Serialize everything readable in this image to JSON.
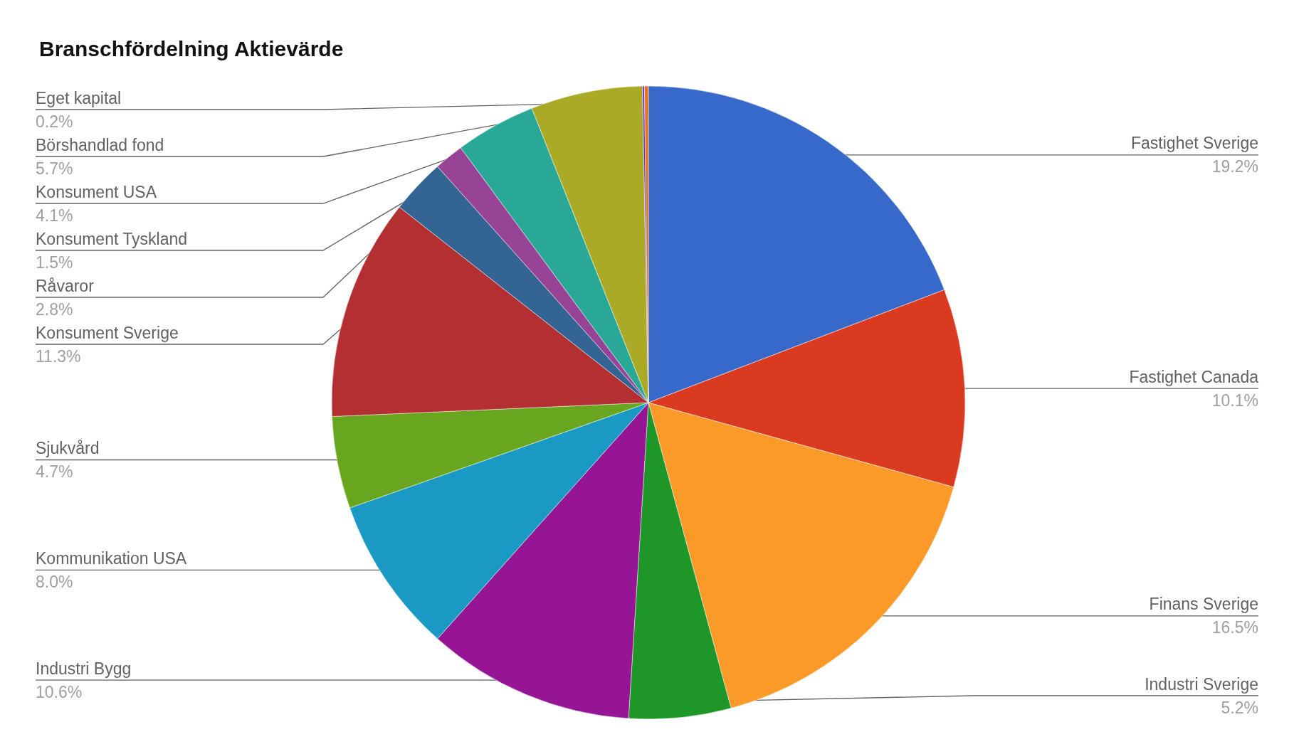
{
  "chart_data": {
    "type": "pie",
    "title": "Branschfördelning Aktievärde",
    "categories": [
      "Fastighet Sverige",
      "Fastighet Canada",
      "Finans Sverige",
      "Industri Sverige",
      "Industri Bygg",
      "Kommunikation USA",
      "Sjukvård",
      "Konsument Sverige",
      "Råvaror",
      "Konsument Tyskland",
      "Konsument USA",
      "Börshandlad fond",
      null,
      "Eget kapital"
    ],
    "values": [
      19.2,
      10.1,
      16.5,
      5.2,
      10.6,
      8,
      4.7,
      11.3,
      2.8,
      1.5,
      4.1,
      5.7,
      0.1,
      0.2
    ],
    "value_labels": [
      "19.2%",
      "10.1%",
      "16.5%",
      "5.2%",
      "10.6%",
      "8.0%",
      "4.7%",
      "11.3%",
      "2.8%",
      "1.5%",
      "4.1%",
      "5.7%",
      null,
      "0.2%"
    ],
    "colors": [
      "#3669c9",
      "#da3a20",
      "#fc9a29",
      "#1f9628",
      "#951595",
      "#1b99c5",
      "#68a61f",
      "#b32f31",
      "#346494",
      "#974497",
      "#2aa897",
      "#aaaa27",
      "#6633cc",
      "#e67321"
    ]
  }
}
